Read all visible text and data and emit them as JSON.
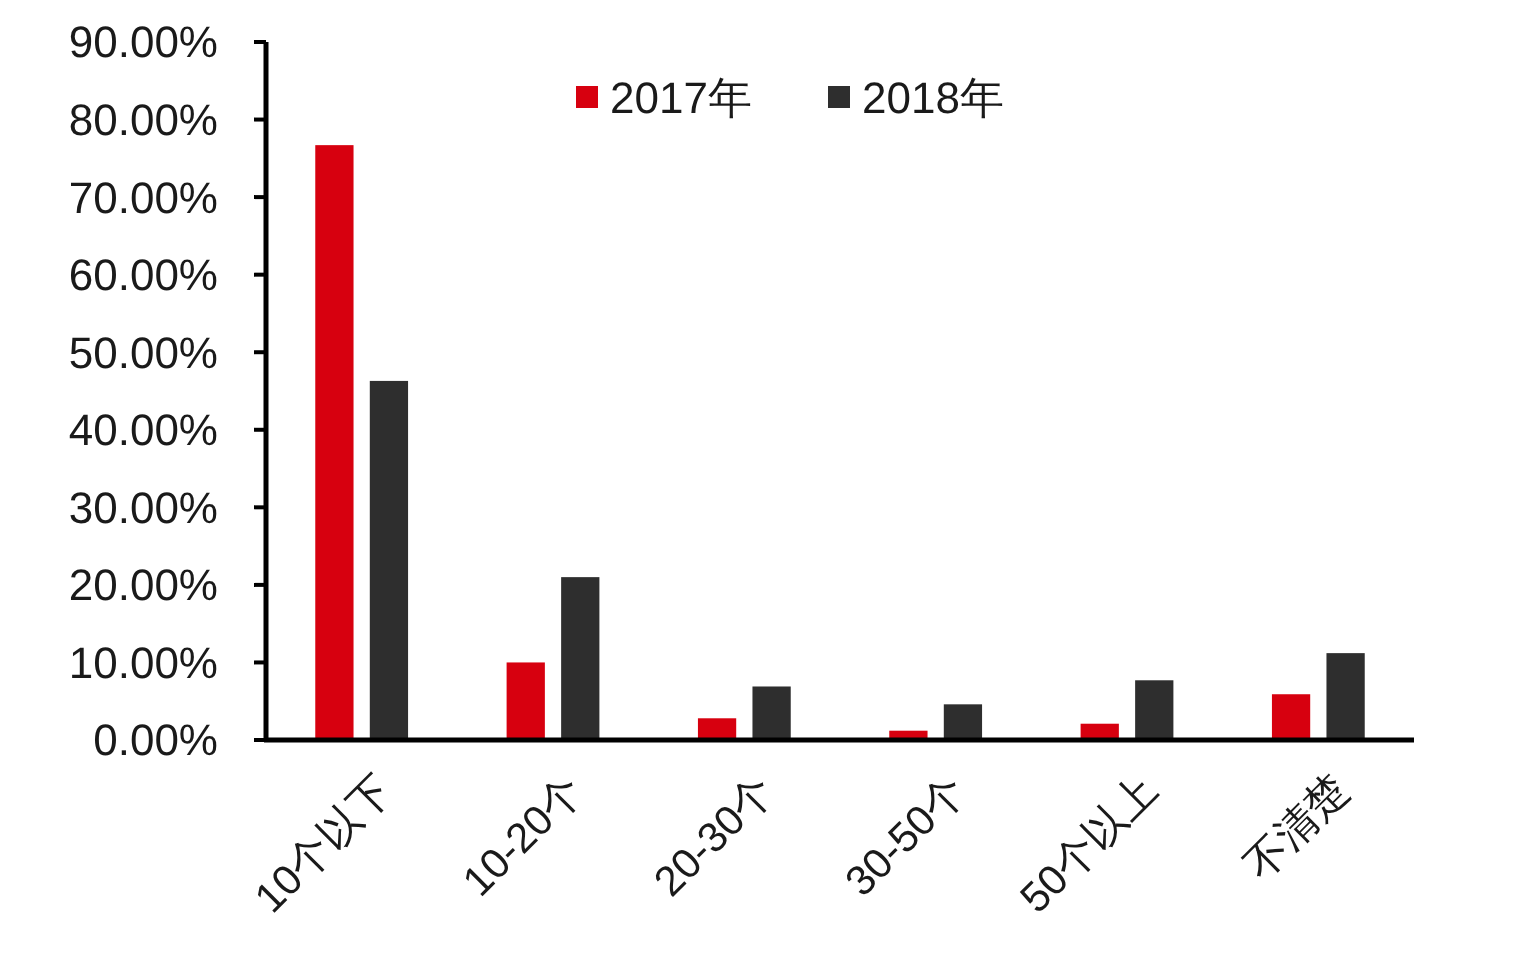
{
  "chart_data": {
    "type": "bar",
    "categories": [
      "10个以下",
      "10-20个",
      "20-30个",
      "30-50个",
      "50个以上",
      "不清楚"
    ],
    "series": [
      {
        "name": "2017年",
        "color": "#d7000f",
        "values": [
          76.7,
          10.0,
          2.8,
          1.2,
          2.1,
          5.9
        ]
      },
      {
        "name": "2018年",
        "color": "#2e2e2e",
        "values": [
          46.3,
          21.0,
          6.9,
          4.6,
          7.7,
          11.2
        ]
      }
    ],
    "ylim": [
      0,
      90
    ],
    "yticks": [
      {
        "value": 0,
        "label": "0.00%"
      },
      {
        "value": 10,
        "label": "10.00%"
      },
      {
        "value": 20,
        "label": "20.00%"
      },
      {
        "value": 30,
        "label": "30.00%"
      },
      {
        "value": 40,
        "label": "40.00%"
      },
      {
        "value": 50,
        "label": "50.00%"
      },
      {
        "value": 60,
        "label": "60.00%"
      },
      {
        "value": 70,
        "label": "70.00%"
      },
      {
        "value": 80,
        "label": "80.00%"
      },
      {
        "value": 90,
        "label": "90.00%"
      }
    ],
    "grid": false,
    "legend": "top"
  }
}
